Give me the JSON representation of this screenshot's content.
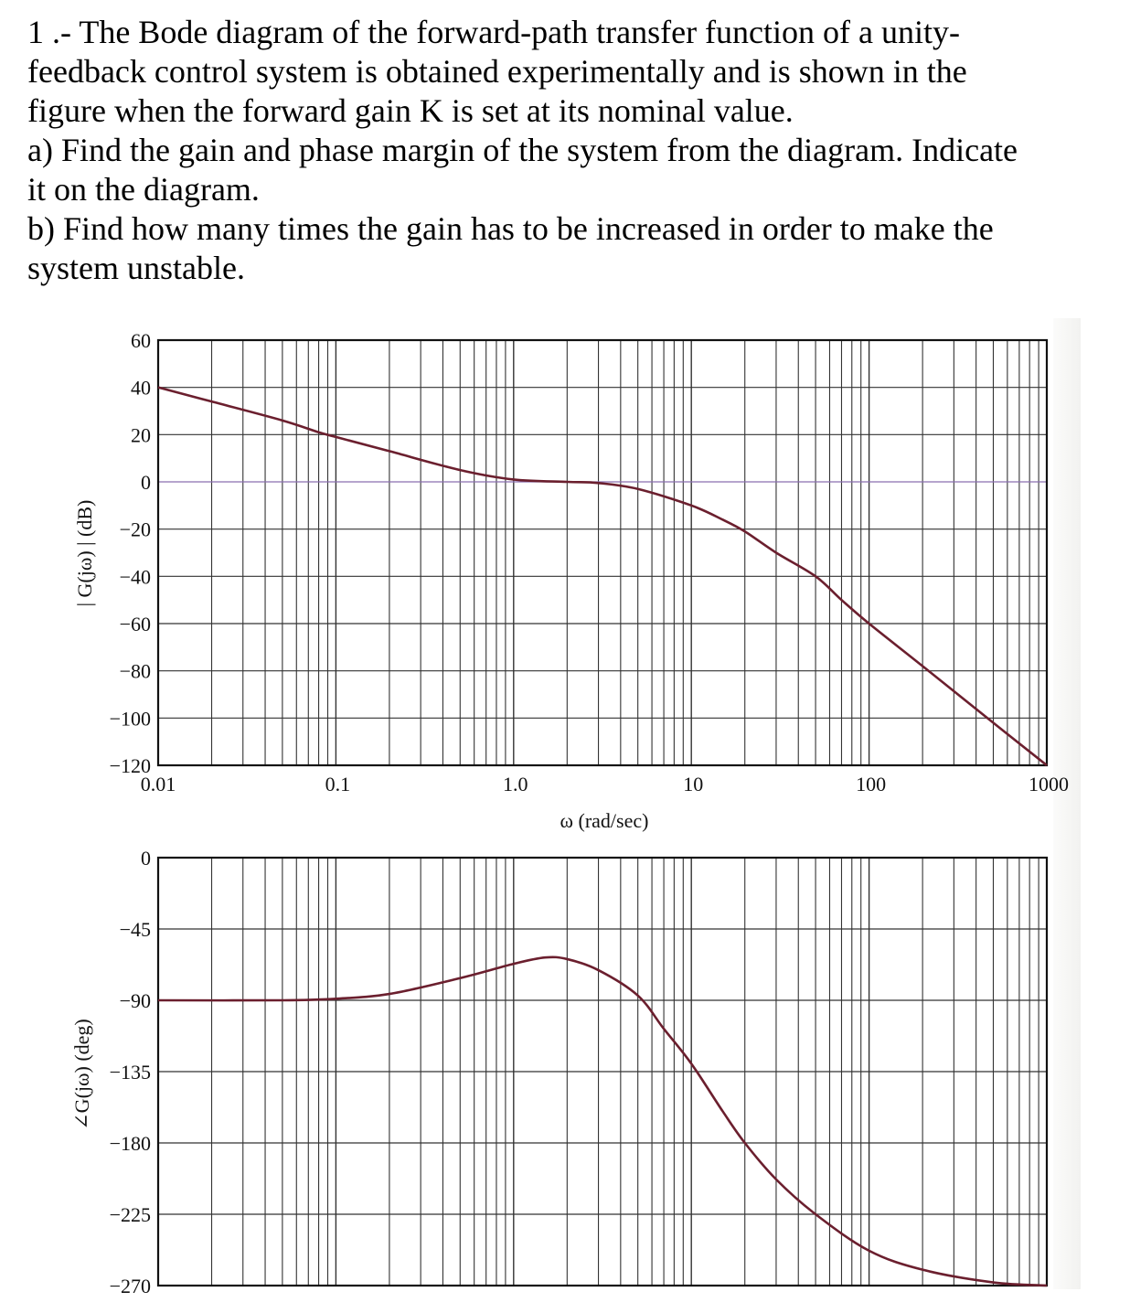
{
  "question": {
    "lines": [
      "1 .- The Bode diagram of the forward-path transfer function of a unity-",
      "feedback control system is obtained experimentally and is shown in the",
      "figure when the forward gain K is set at its nominal value.",
      "a) Find the gain and phase margin of the system from the diagram. Indicate",
      "it on the diagram.",
      "b) Find how many times the gain has to be increased in order to make the",
      "system unstable."
    ]
  },
  "colors": {
    "curve": "#6b1f2e",
    "grid": "#333333",
    "border": "#111111",
    "zero_line": "#8a6fb0"
  },
  "chart_data": [
    {
      "type": "line",
      "title": "Bode magnitude",
      "xlabel": "ω (rad/sec)",
      "ylabel": "| G(jω) | (dB)",
      "xscale": "log",
      "xlim": [
        0.01,
        1000
      ],
      "ylim": [
        -120,
        60
      ],
      "x_ticks": [
        "0.01",
        "0.1",
        "1.0",
        "10",
        "100",
        "1000"
      ],
      "y_ticks": [
        60,
        40,
        20,
        0,
        -20,
        -40,
        -60,
        -80,
        -100,
        -120
      ],
      "grid": true,
      "x": [
        0.01,
        0.02,
        0.05,
        0.08,
        0.1,
        0.2,
        0.5,
        1,
        2,
        3,
        5,
        10,
        15,
        20,
        30,
        50,
        70,
        100,
        200,
        500,
        1000
      ],
      "values": [
        40,
        34,
        26,
        21,
        19,
        13,
        5,
        1,
        0,
        -0.5,
        -3,
        -10,
        -16,
        -21,
        -30,
        -40,
        -50,
        -60,
        -78,
        -102,
        -120
      ]
    },
    {
      "type": "line",
      "title": "Bode phase",
      "xlabel": "ω (rad/sec)",
      "ylabel": "∠G(jω) (deg)",
      "xscale": "log",
      "xlim": [
        0.01,
        1000
      ],
      "ylim": [
        -270,
        0
      ],
      "y_ticks": [
        0,
        -45,
        -90,
        -135,
        -180,
        -225,
        -270
      ],
      "grid": true,
      "x": [
        0.01,
        0.05,
        0.1,
        0.2,
        0.5,
        1,
        1.5,
        2,
        3,
        5,
        7,
        10,
        15,
        20,
        30,
        50,
        100,
        200,
        500,
        1000
      ],
      "values": [
        -90,
        -90,
        -89,
        -86,
        -76,
        -67,
        -63,
        -64,
        -71,
        -87,
        -108,
        -130,
        -160,
        -180,
        -203,
        -225,
        -248,
        -260,
        -268,
        -270
      ]
    }
  ],
  "labels": {
    "mag_ylabel": "| G(jω) | (dB)",
    "phase_ylabel": "∠G(jω) (deg)",
    "xlabel": "ω (rad/sec)"
  }
}
